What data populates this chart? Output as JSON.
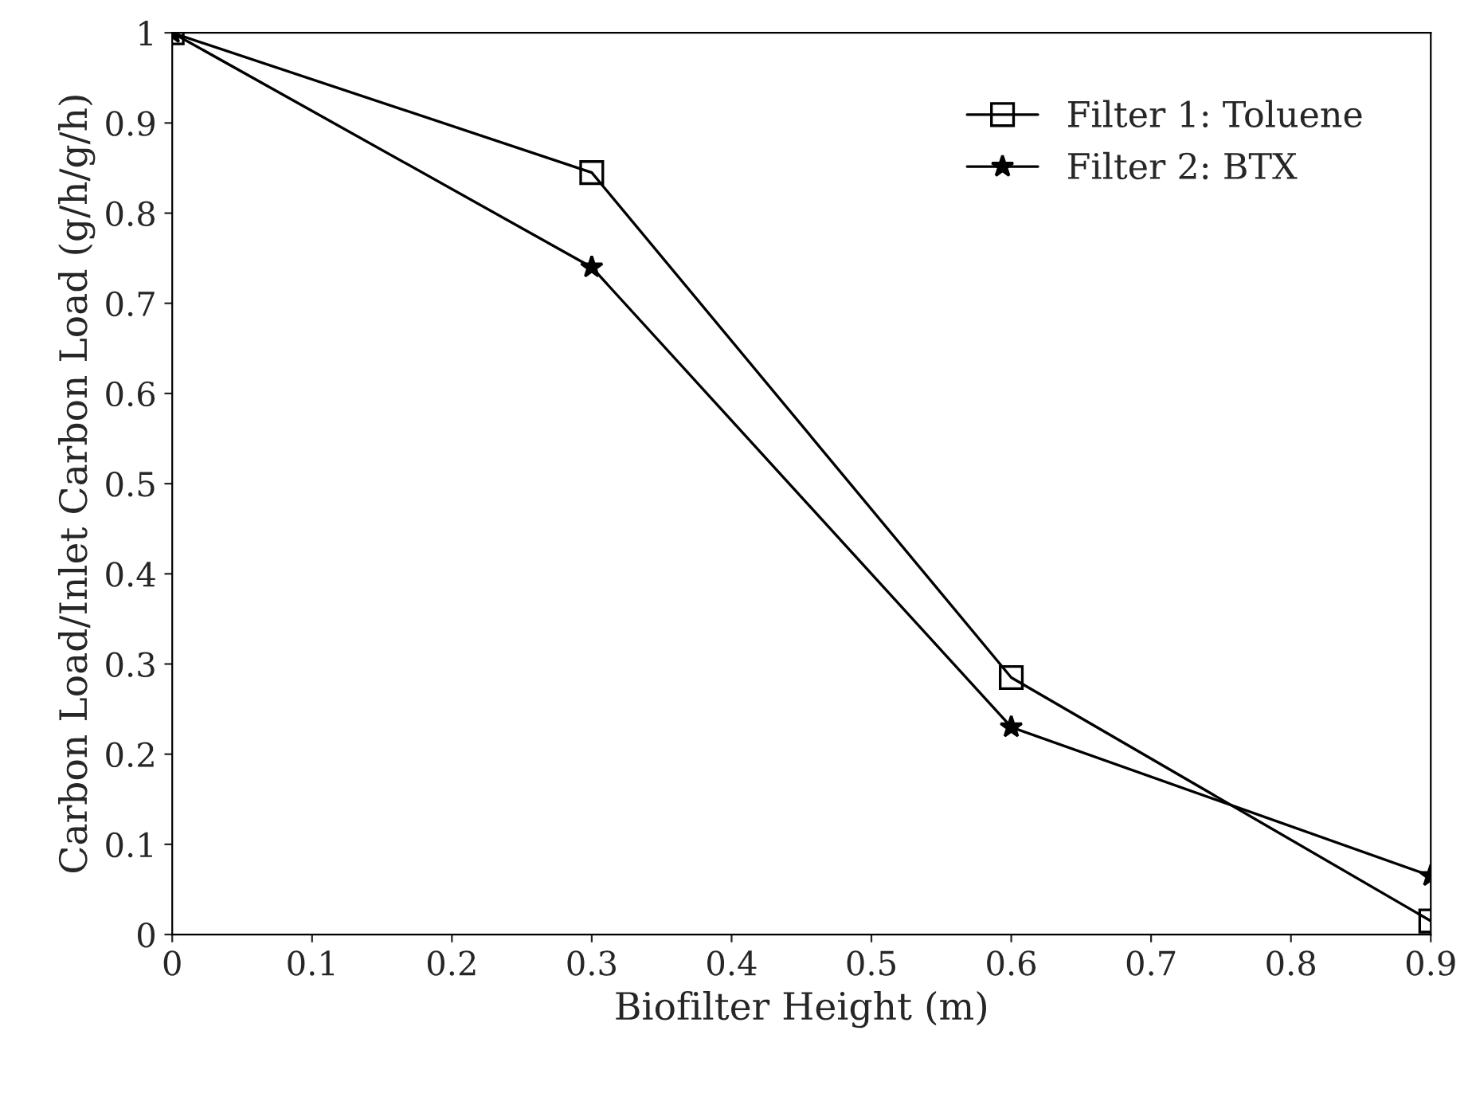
{
  "chart_data": {
    "type": "line",
    "xlabel": "Biofilter Height (m)",
    "ylabel": "Carbon Load/Inlet Carbon Load (g/h/g/h)",
    "x": [
      0,
      0.3,
      0.6,
      0.9
    ],
    "series": [
      {
        "name": "Filter 1: Toluene",
        "color": "#000000",
        "marker": "square",
        "values": [
          1.0,
          0.845,
          0.285,
          0.015
        ]
      },
      {
        "name": "Filter 2: BTX",
        "color": "#000000",
        "marker": "star",
        "values": [
          1.0,
          0.74,
          0.23,
          0.065
        ]
      }
    ],
    "xlim": [
      0,
      0.9
    ],
    "ylim": [
      0,
      1
    ],
    "xticks": [
      0,
      0.1,
      0.2,
      0.3,
      0.4,
      0.5,
      0.6,
      0.7,
      0.8,
      0.9
    ],
    "yticks": [
      0,
      0.1,
      0.2,
      0.3,
      0.4,
      0.5,
      0.6,
      0.7,
      0.8,
      0.9,
      1
    ],
    "grid": false,
    "legend": "top right",
    "line_style": "solid"
  }
}
